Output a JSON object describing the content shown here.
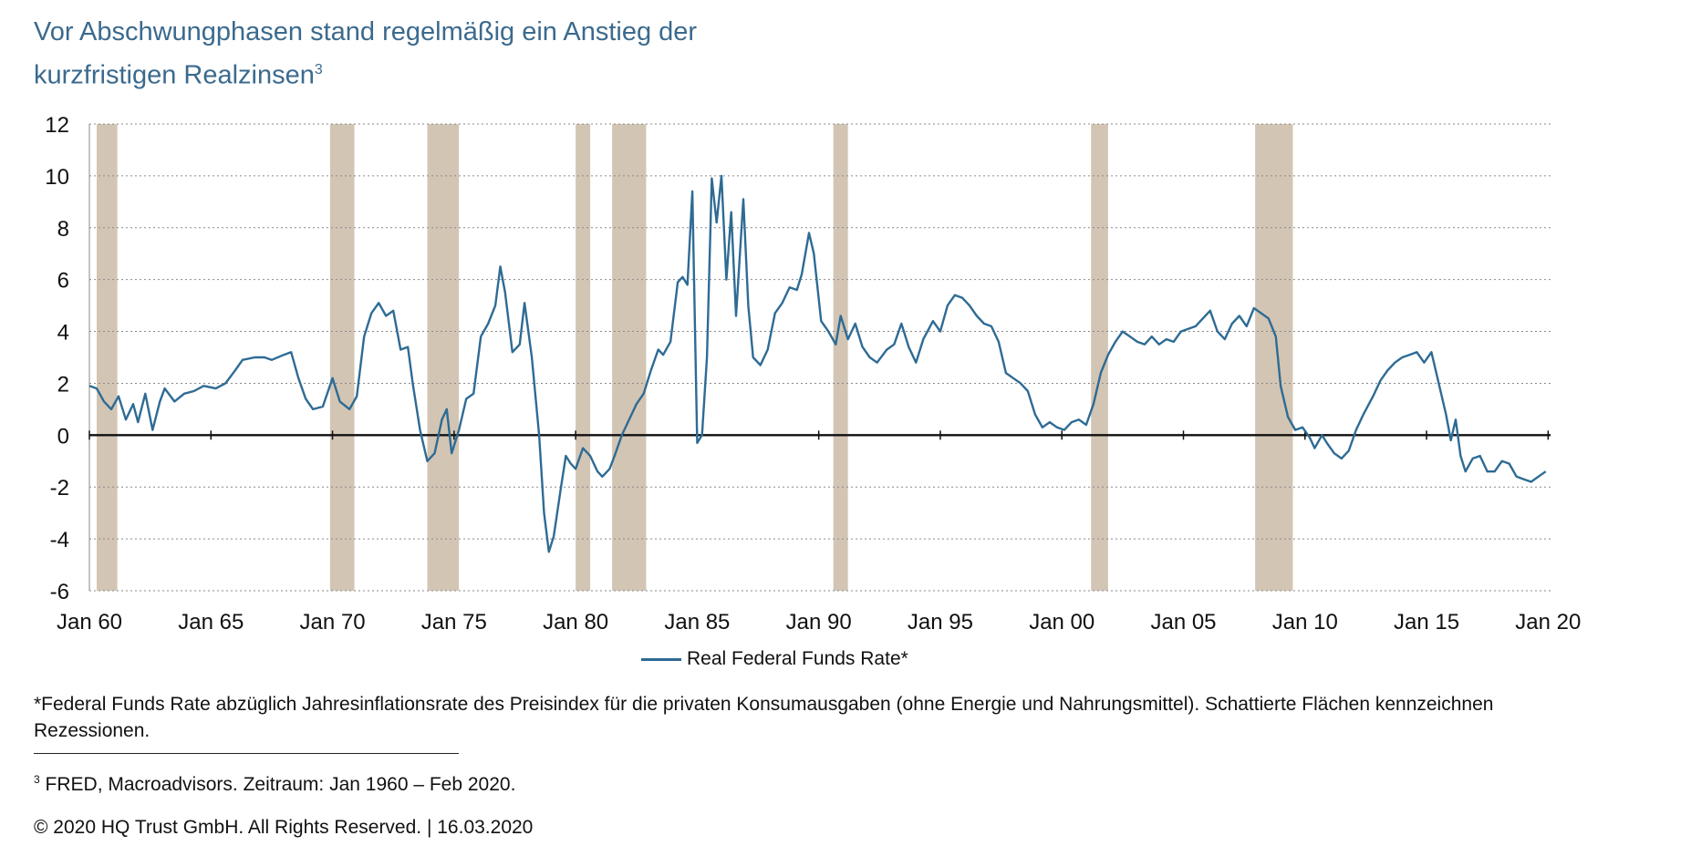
{
  "header": {
    "title_line1": "Vor Abschwungphasen stand regelmäßig ein Anstieg der",
    "title_line2": "kurzfristigen Realzinsen",
    "title_sup": "3"
  },
  "chart_data": {
    "type": "line",
    "title": "Vor Abschwungphasen stand regelmäßig ein Anstieg der kurzfristigen Realzinsen",
    "xlabel": "",
    "ylabel": "",
    "x_ticks": [
      "Jan 60",
      "Jan 65",
      "Jan 70",
      "Jan 75",
      "Jan 80",
      "Jan 85",
      "Jan 90",
      "Jan 95",
      "Jan 00",
      "Jan 05",
      "Jan 10",
      "Jan 15",
      "Jan 20"
    ],
    "x_tick_years": [
      1960,
      1965,
      1970,
      1975,
      1980,
      1985,
      1990,
      1995,
      2000,
      2005,
      2010,
      2015,
      2020
    ],
    "xlim": [
      1960.0,
      2020.1
    ],
    "ylim": [
      -6,
      12
    ],
    "y_ticks": [
      12,
      10,
      8,
      6,
      4,
      2,
      0,
      -2,
      -4,
      -6
    ],
    "grid": "horizontal-dotted",
    "zero_line": true,
    "legend_position": "bottom-center",
    "recessions": [
      [
        1960.3,
        1961.15
      ],
      [
        1969.9,
        1970.9
      ],
      [
        1973.9,
        1975.2
      ],
      [
        1980.0,
        1980.6
      ],
      [
        1981.5,
        1982.9
      ],
      [
        1990.6,
        1991.2
      ],
      [
        2001.2,
        2001.9
      ],
      [
        2007.95,
        2009.5
      ]
    ],
    "series": [
      {
        "name": "Real Federal Funds Rate*",
        "color": "#2e6b94",
        "points": [
          [
            1960.0,
            1.9
          ],
          [
            1960.3,
            1.8
          ],
          [
            1960.6,
            1.3
          ],
          [
            1960.9,
            1.0
          ],
          [
            1961.2,
            1.5
          ],
          [
            1961.5,
            0.6
          ],
          [
            1961.8,
            1.2
          ],
          [
            1962.0,
            0.5
          ],
          [
            1962.3,
            1.6
          ],
          [
            1962.6,
            0.2
          ],
          [
            1962.9,
            1.3
          ],
          [
            1963.1,
            1.8
          ],
          [
            1963.5,
            1.3
          ],
          [
            1963.9,
            1.6
          ],
          [
            1964.3,
            1.7
          ],
          [
            1964.7,
            1.9
          ],
          [
            1965.2,
            1.8
          ],
          [
            1965.6,
            2.0
          ],
          [
            1966.0,
            2.5
          ],
          [
            1966.3,
            2.9
          ],
          [
            1966.8,
            3.0
          ],
          [
            1967.2,
            3.0
          ],
          [
            1967.5,
            2.9
          ],
          [
            1968.0,
            3.1
          ],
          [
            1968.3,
            3.2
          ],
          [
            1968.6,
            2.2
          ],
          [
            1968.9,
            1.4
          ],
          [
            1969.2,
            1.0
          ],
          [
            1969.6,
            1.1
          ],
          [
            1970.0,
            2.2
          ],
          [
            1970.3,
            1.3
          ],
          [
            1970.7,
            1.0
          ],
          [
            1971.0,
            1.5
          ],
          [
            1971.3,
            3.8
          ],
          [
            1971.6,
            4.7
          ],
          [
            1971.9,
            5.1
          ],
          [
            1972.2,
            4.6
          ],
          [
            1972.5,
            4.8
          ],
          [
            1972.8,
            3.3
          ],
          [
            1973.1,
            3.4
          ],
          [
            1973.3,
            2.0
          ],
          [
            1973.6,
            0.2
          ],
          [
            1973.9,
            -1.0
          ],
          [
            1974.2,
            -0.7
          ],
          [
            1974.5,
            0.6
          ],
          [
            1974.7,
            1.0
          ],
          [
            1974.9,
            -0.7
          ],
          [
            1975.2,
            0.2
          ],
          [
            1975.5,
            1.4
          ],
          [
            1975.8,
            1.6
          ],
          [
            1976.1,
            3.8
          ],
          [
            1976.4,
            4.3
          ],
          [
            1976.7,
            5.0
          ],
          [
            1976.9,
            6.5
          ],
          [
            1977.1,
            5.5
          ],
          [
            1977.4,
            3.2
          ],
          [
            1977.7,
            3.5
          ],
          [
            1977.9,
            5.1
          ],
          [
            1978.2,
            3.0
          ],
          [
            1978.5,
            0.0
          ],
          [
            1978.7,
            -3.0
          ],
          [
            1978.9,
            -4.5
          ],
          [
            1979.1,
            -3.9
          ],
          [
            1979.4,
            -2.0
          ],
          [
            1979.6,
            -0.8
          ],
          [
            1979.8,
            -1.1
          ],
          [
            1980.0,
            -1.3
          ],
          [
            1980.3,
            -0.5
          ],
          [
            1980.6,
            -0.8
          ],
          [
            1980.9,
            -1.4
          ],
          [
            1981.1,
            -1.6
          ],
          [
            1981.4,
            -1.3
          ],
          [
            1981.6,
            -0.8
          ],
          [
            1981.9,
            0.0
          ],
          [
            1982.2,
            0.6
          ],
          [
            1982.5,
            1.2
          ],
          [
            1982.8,
            1.6
          ],
          [
            1983.1,
            2.5
          ],
          [
            1983.4,
            3.3
          ],
          [
            1983.6,
            3.1
          ],
          [
            1983.9,
            3.6
          ],
          [
            1984.2,
            5.9
          ],
          [
            1984.4,
            6.1
          ],
          [
            1984.6,
            5.8
          ],
          [
            1984.8,
            9.4
          ],
          [
            1985.0,
            -0.3
          ],
          [
            1985.2,
            0.0
          ],
          [
            1985.4,
            3.0
          ],
          [
            1985.6,
            9.9
          ],
          [
            1985.8,
            8.2
          ],
          [
            1986.0,
            10.0
          ],
          [
            1986.2,
            6.0
          ],
          [
            1986.4,
            8.6
          ],
          [
            1986.6,
            4.6
          ],
          [
            1986.9,
            9.1
          ],
          [
            1987.1,
            5.0
          ],
          [
            1987.3,
            3.0
          ],
          [
            1987.6,
            2.7
          ],
          [
            1987.9,
            3.3
          ],
          [
            1988.2,
            4.7
          ],
          [
            1988.5,
            5.1
          ],
          [
            1988.8,
            5.7
          ],
          [
            1989.1,
            5.6
          ],
          [
            1989.3,
            6.2
          ],
          [
            1989.6,
            7.8
          ],
          [
            1989.8,
            7.0
          ],
          [
            1990.1,
            4.4
          ],
          [
            1990.4,
            4.0
          ],
          [
            1990.7,
            3.5
          ],
          [
            1990.9,
            4.6
          ],
          [
            1991.2,
            3.7
          ],
          [
            1991.5,
            4.3
          ],
          [
            1991.8,
            3.4
          ],
          [
            1992.1,
            3.0
          ],
          [
            1992.4,
            2.8
          ],
          [
            1992.8,
            3.3
          ],
          [
            1993.1,
            3.5
          ],
          [
            1993.4,
            4.3
          ],
          [
            1993.7,
            3.4
          ],
          [
            1994.0,
            2.8
          ],
          [
            1994.3,
            3.7
          ],
          [
            1994.7,
            4.4
          ],
          [
            1995.0,
            4.0
          ],
          [
            1995.3,
            5.0
          ],
          [
            1995.6,
            5.4
          ],
          [
            1995.9,
            5.3
          ],
          [
            1996.2,
            5.0
          ],
          [
            1996.5,
            4.6
          ],
          [
            1996.8,
            4.3
          ],
          [
            1997.1,
            4.2
          ],
          [
            1997.4,
            3.6
          ],
          [
            1997.7,
            2.4
          ],
          [
            1998.0,
            2.2
          ],
          [
            1998.3,
            2.0
          ],
          [
            1998.6,
            1.7
          ],
          [
            1998.9,
            0.8
          ],
          [
            1999.2,
            0.3
          ],
          [
            1999.5,
            0.5
          ],
          [
            1999.8,
            0.3
          ],
          [
            2000.1,
            0.2
          ],
          [
            2000.4,
            0.5
          ],
          [
            2000.7,
            0.6
          ],
          [
            2001.0,
            0.4
          ],
          [
            2001.3,
            1.2
          ],
          [
            2001.6,
            2.4
          ],
          [
            2001.9,
            3.1
          ],
          [
            2002.2,
            3.6
          ],
          [
            2002.5,
            4.0
          ],
          [
            2002.8,
            3.8
          ],
          [
            2003.1,
            3.6
          ],
          [
            2003.4,
            3.5
          ],
          [
            2003.7,
            3.8
          ],
          [
            2004.0,
            3.5
          ],
          [
            2004.3,
            3.7
          ],
          [
            2004.6,
            3.6
          ],
          [
            2004.9,
            4.0
          ],
          [
            2005.2,
            4.1
          ],
          [
            2005.5,
            4.2
          ],
          [
            2005.8,
            4.5
          ],
          [
            2006.1,
            4.8
          ],
          [
            2006.4,
            4.0
          ],
          [
            2006.7,
            3.7
          ],
          [
            2007.0,
            4.3
          ],
          [
            2007.3,
            4.6
          ],
          [
            2007.6,
            4.2
          ],
          [
            2007.9,
            4.9
          ],
          [
            2008.2,
            4.7
          ],
          [
            2008.5,
            4.5
          ],
          [
            2008.8,
            3.8
          ],
          [
            2009.0,
            1.9
          ],
          [
            2009.3,
            0.7
          ],
          [
            2009.6,
            0.2
          ],
          [
            2009.9,
            0.3
          ],
          [
            2010.2,
            -0.1
          ],
          [
            2010.4,
            -0.5
          ],
          [
            2010.7,
            0.0
          ],
          [
            2010.9,
            -0.3
          ],
          [
            2011.2,
            -0.7
          ],
          [
            2011.5,
            -0.9
          ],
          [
            2011.8,
            -0.6
          ],
          [
            2012.1,
            0.2
          ],
          [
            2012.4,
            0.8
          ],
          [
            2012.8,
            1.5
          ],
          [
            2013.1,
            2.1
          ],
          [
            2013.4,
            2.5
          ],
          [
            2013.7,
            2.8
          ],
          [
            2014.0,
            3.0
          ],
          [
            2014.3,
            3.1
          ],
          [
            2014.6,
            3.2
          ],
          [
            2014.9,
            2.8
          ],
          [
            2015.2,
            3.2
          ],
          [
            2015.5,
            2.0
          ],
          [
            2015.8,
            0.8
          ],
          [
            2016.0,
            -0.2
          ],
          [
            2016.2,
            0.6
          ],
          [
            2016.4,
            -0.8
          ],
          [
            2016.6,
            -1.4
          ],
          [
            2016.9,
            -0.9
          ],
          [
            2017.2,
            -0.8
          ],
          [
            2017.5,
            -1.4
          ],
          [
            2017.8,
            -1.4
          ],
          [
            2018.1,
            -1.0
          ],
          [
            2018.4,
            -1.1
          ],
          [
            2018.7,
            -1.6
          ],
          [
            2019.0,
            -1.7
          ],
          [
            2019.3,
            -1.8
          ],
          [
            2019.6,
            -1.6
          ],
          [
            2019.9,
            -1.4
          ]
        ]
      }
    ]
  },
  "legend": {
    "label": "Real Federal Funds Rate*"
  },
  "footnote": {
    "text": "*Federal Funds Rate abzüglich Jahresinflationsrate des Preisindex für die privaten Konsumausgaben (ohne Energie und Nahrungsmittel). Schattierte Flächen kennzeichnen Rezessionen."
  },
  "source": {
    "sup": "3",
    "text": " FRED, Macroadvisors. Zeitraum: Jan 1960 – Feb 2020."
  },
  "copyright": {
    "text": "© 2020 HQ Trust GmbH. All Rights Reserved. | 16.03.2020"
  }
}
